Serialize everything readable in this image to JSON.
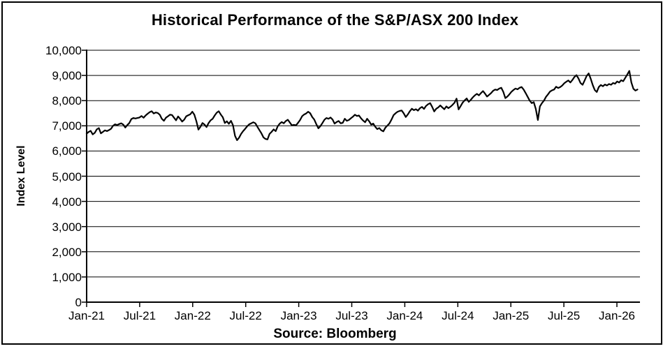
{
  "title": "Historical Performance of the S&P/ASX 200 Index",
  "source": "Source: Bloomberg",
  "colors": {
    "line": "#000000",
    "grid": "#000000",
    "axis": "#000000",
    "background": "#ffffff",
    "text": "#000000"
  },
  "chart_data": {
    "type": "line",
    "title": "Historical Performance of the S&P/ASX 200 Index",
    "ylabel": "Index Level",
    "xlabel": "",
    "source_label": "Source: Bloomberg",
    "legend": "none",
    "grid": "horizontal",
    "ylim": [
      0,
      10000
    ],
    "y_ticks": [
      0,
      1000,
      2000,
      3000,
      4000,
      5000,
      6000,
      7000,
      8000,
      9000,
      10000
    ],
    "y_tick_labels": [
      "0",
      "1,000",
      "2,000",
      "3,000",
      "4,000",
      "5,000",
      "6,000",
      "7,000",
      "8,000",
      "9,000",
      "10,000"
    ],
    "x_tick_labels": [
      "Jan-21",
      "Jul-21",
      "Jan-22",
      "Jul-22",
      "Jan-23",
      "Jul-23",
      "Jan-24",
      "Jul-24",
      "Jan-25",
      "Jul-25",
      "Jan-26"
    ],
    "x_range_note": "weekly observations from Jan-2021 to mid-Mar-2026",
    "series": [
      {
        "name": "S&P/ASX 200 Index",
        "start": "2021-01",
        "interval_days": 7,
        "values": [
          6690,
          6760,
          6800,
          6660,
          6720,
          6860,
          6910,
          6700,
          6760,
          6820,
          6790,
          6830,
          6880,
          7000,
          7060,
          7030,
          7070,
          7100,
          7050,
          6930,
          7030,
          7110,
          7270,
          7310,
          7290,
          7310,
          7330,
          7390,
          7320,
          7410,
          7480,
          7540,
          7580,
          7490,
          7530,
          7510,
          7440,
          7280,
          7200,
          7320,
          7380,
          7440,
          7430,
          7320,
          7220,
          7370,
          7280,
          7170,
          7240,
          7380,
          7420,
          7460,
          7560,
          7440,
          7180,
          6850,
          6960,
          7110,
          7050,
          6950,
          7110,
          7220,
          7280,
          7410,
          7520,
          7580,
          7450,
          7340,
          7110,
          7180,
          7080,
          7200,
          7020,
          6600,
          6430,
          6530,
          6680,
          6790,
          6880,
          6980,
          7060,
          7100,
          7140,
          7100,
          6960,
          6830,
          6700,
          6540,
          6480,
          6460,
          6680,
          6760,
          6860,
          6790,
          6980,
          7090,
          7150,
          7100,
          7190,
          7240,
          7130,
          7020,
          7040,
          7020,
          7120,
          7230,
          7380,
          7450,
          7490,
          7560,
          7500,
          7350,
          7250,
          7070,
          6900,
          6990,
          7110,
          7240,
          7310,
          7280,
          7330,
          7250,
          7090,
          7150,
          7190,
          7100,
          7120,
          7280,
          7200,
          7230,
          7300,
          7360,
          7440,
          7390,
          7410,
          7300,
          7210,
          7140,
          7280,
          7180,
          7050,
          7090,
          6960,
          6870,
          6910,
          6820,
          6780,
          6930,
          7010,
          7100,
          7250,
          7420,
          7500,
          7560,
          7590,
          7610,
          7500,
          7350,
          7450,
          7580,
          7680,
          7620,
          7660,
          7600,
          7700,
          7750,
          7670,
          7790,
          7860,
          7900,
          7750,
          7570,
          7680,
          7730,
          7810,
          7730,
          7660,
          7770,
          7700,
          7760,
          7830,
          7920,
          8080,
          7650,
          7780,
          7920,
          8010,
          8090,
          7950,
          8030,
          8130,
          8210,
          8270,
          8210,
          8300,
          8380,
          8280,
          8160,
          8230,
          8300,
          8390,
          8440,
          8420,
          8480,
          8510,
          8350,
          8100,
          8160,
          8250,
          8350,
          8420,
          8480,
          8450,
          8510,
          8540,
          8440,
          8300,
          8150,
          8000,
          7900,
          7940,
          7670,
          7230,
          7770,
          7900,
          8000,
          8150,
          8250,
          8360,
          8410,
          8440,
          8550,
          8500,
          8540,
          8600,
          8690,
          8750,
          8800,
          8720,
          8820,
          8940,
          9010,
          8880,
          8700,
          8630,
          8800,
          8980,
          9080,
          8870,
          8620,
          8420,
          8340,
          8540,
          8620,
          8570,
          8640,
          8600,
          8660,
          8630,
          8700,
          8670,
          8760,
          8720,
          8810,
          8770,
          8900,
          9040,
          9180,
          8720,
          8470,
          8400,
          8440
        ]
      }
    ]
  }
}
